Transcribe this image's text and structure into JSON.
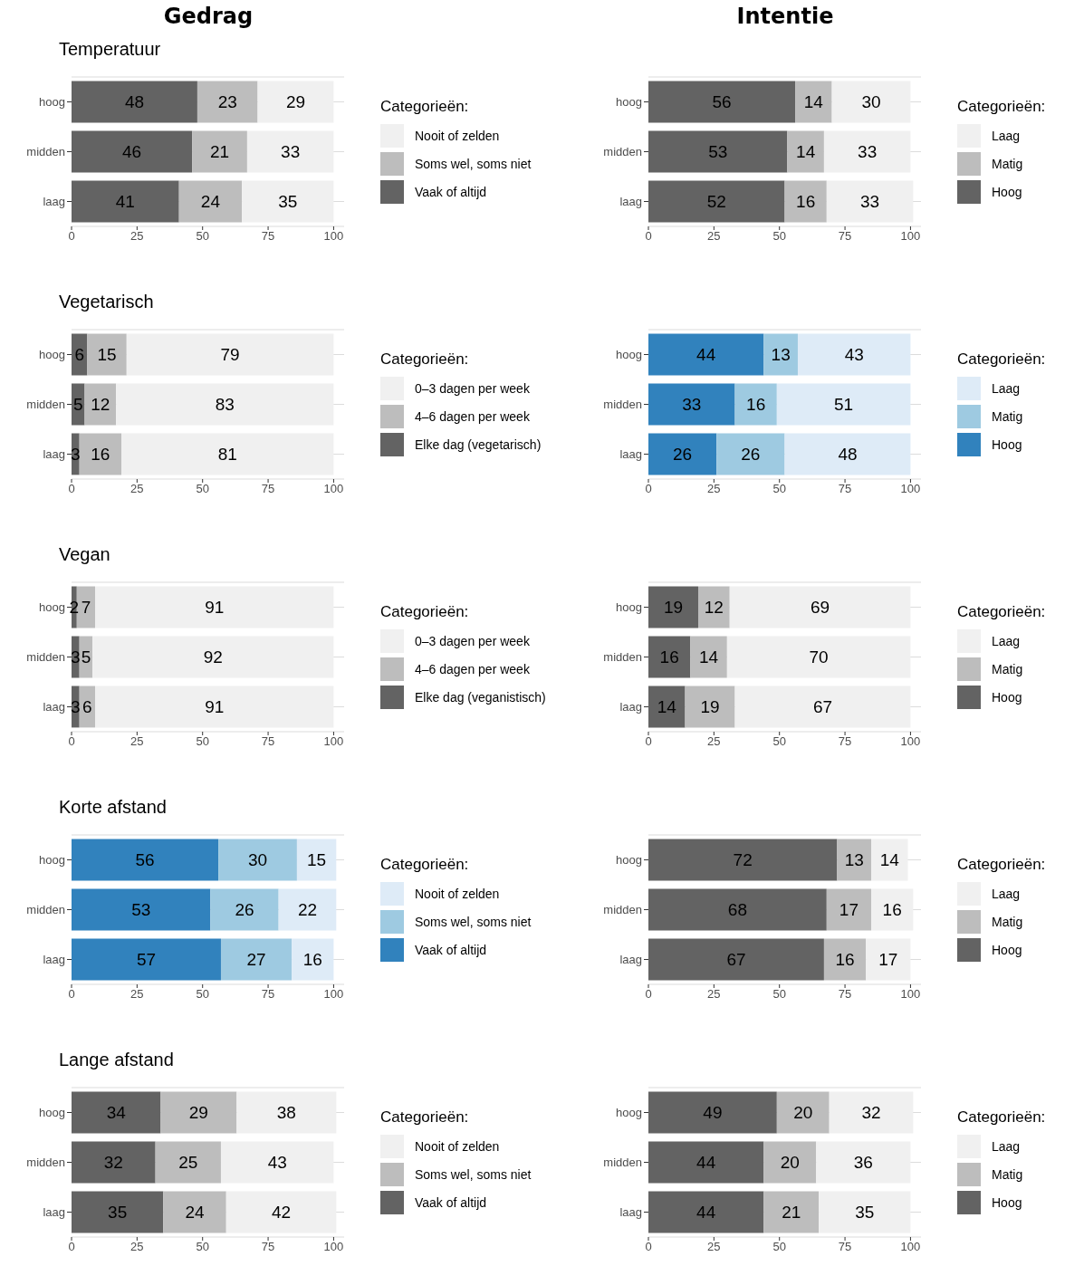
{
  "chart_data": [
    {
      "type": "bar",
      "orientation": "horizontal",
      "stacked": true,
      "title": "Gedrag",
      "subtitle": "Temperatuur",
      "categories": [
        "hoog",
        "midden",
        "laag"
      ],
      "legend_title": "Categorieën:",
      "legend": "right",
      "grid": "y",
      "data_labels": true,
      "xlim": [
        0,
        104
      ],
      "xticks": [
        0,
        25,
        50,
        75,
        100
      ],
      "series": [
        {
          "name": "Vaak of altijd",
          "color": "#636363",
          "values": [
            48,
            46,
            41
          ]
        },
        {
          "name": "Soms wel, soms niet",
          "color": "#bdbdbd",
          "values": [
            23,
            21,
            24
          ]
        },
        {
          "name": "Nooit of zelden",
          "color": "#f0f0f0",
          "values": [
            29,
            33,
            35
          ]
        }
      ]
    },
    {
      "type": "bar",
      "orientation": "horizontal",
      "stacked": true,
      "title": "Intentie",
      "categories": [
        "hoog",
        "midden",
        "laag"
      ],
      "legend_title": "Categorieën:",
      "legend": "right",
      "grid": "y",
      "data_labels": true,
      "xlim": [
        0,
        104
      ],
      "xticks": [
        0,
        25,
        50,
        75,
        100
      ],
      "series": [
        {
          "name": "Hoog",
          "color": "#636363",
          "values": [
            56,
            53,
            52
          ]
        },
        {
          "name": "Matig",
          "color": "#bdbdbd",
          "values": [
            14,
            14,
            16
          ]
        },
        {
          "name": "Laag",
          "color": "#f0f0f0",
          "values": [
            30,
            33,
            33
          ]
        }
      ]
    },
    {
      "type": "bar",
      "orientation": "horizontal",
      "stacked": true,
      "subtitle": "Vegetarisch",
      "categories": [
        "hoog",
        "midden",
        "laag"
      ],
      "legend_title": "Categorieën:",
      "legend": "right",
      "grid": "y",
      "data_labels": true,
      "xlim": [
        0,
        104
      ],
      "xticks": [
        0,
        25,
        50,
        75,
        100
      ],
      "series": [
        {
          "name": "Elke dag (vegetarisch)",
          "color": "#636363",
          "values": [
            6,
            5,
            3
          ]
        },
        {
          "name": "4–6 dagen per week",
          "color": "#bdbdbd",
          "values": [
            15,
            12,
            16
          ]
        },
        {
          "name": "0–3 dagen per week",
          "color": "#f0f0f0",
          "values": [
            79,
            83,
            81
          ]
        }
      ]
    },
    {
      "type": "bar",
      "orientation": "horizontal",
      "stacked": true,
      "categories": [
        "hoog",
        "midden",
        "laag"
      ],
      "legend_title": "Categorieën:",
      "legend": "right",
      "grid": "y",
      "data_labels": true,
      "xlim": [
        0,
        104
      ],
      "xticks": [
        0,
        25,
        50,
        75,
        100
      ],
      "series": [
        {
          "name": "Hoog",
          "color": "#3182bd",
          "values": [
            44,
            33,
            26
          ]
        },
        {
          "name": "Matig",
          "color": "#9ecae1",
          "values": [
            13,
            16,
            26
          ]
        },
        {
          "name": "Laag",
          "color": "#deebf7",
          "values": [
            43,
            51,
            48
          ]
        }
      ]
    },
    {
      "type": "bar",
      "orientation": "horizontal",
      "stacked": true,
      "subtitle": "Vegan",
      "categories": [
        "hoog",
        "midden",
        "laag"
      ],
      "legend_title": "Categorieën:",
      "legend": "right",
      "grid": "y",
      "data_labels": true,
      "xlim": [
        0,
        104
      ],
      "xticks": [
        0,
        25,
        50,
        75,
        100
      ],
      "series": [
        {
          "name": "Elke dag (veganistisch)",
          "color": "#636363",
          "values": [
            2,
            3,
            3
          ]
        },
        {
          "name": "4–6 dagen per week",
          "color": "#bdbdbd",
          "values": [
            7,
            5,
            6
          ]
        },
        {
          "name": "0–3 dagen per week",
          "color": "#f0f0f0",
          "values": [
            91,
            92,
            91
          ]
        }
      ]
    },
    {
      "type": "bar",
      "orientation": "horizontal",
      "stacked": true,
      "categories": [
        "hoog",
        "midden",
        "laag"
      ],
      "legend_title": "Categorieën:",
      "legend": "right",
      "grid": "y",
      "data_labels": true,
      "xlim": [
        0,
        104
      ],
      "xticks": [
        0,
        25,
        50,
        75,
        100
      ],
      "series": [
        {
          "name": "Hoog",
          "color": "#636363",
          "values": [
            19,
            16,
            14
          ]
        },
        {
          "name": "Matig",
          "color": "#bdbdbd",
          "values": [
            12,
            14,
            19
          ]
        },
        {
          "name": "Laag",
          "color": "#f0f0f0",
          "values": [
            69,
            70,
            67
          ]
        }
      ]
    },
    {
      "type": "bar",
      "orientation": "horizontal",
      "stacked": true,
      "subtitle": "Korte afstand",
      "categories": [
        "hoog",
        "midden",
        "laag"
      ],
      "legend_title": "Categorieën:",
      "legend": "right",
      "grid": "y",
      "data_labels": true,
      "xlim": [
        0,
        104
      ],
      "xticks": [
        0,
        25,
        50,
        75,
        100
      ],
      "series": [
        {
          "name": "Vaak of altijd",
          "color": "#3182bd",
          "values": [
            56,
            53,
            57
          ]
        },
        {
          "name": "Soms wel, soms niet",
          "color": "#9ecae1",
          "values": [
            30,
            26,
            27
          ]
        },
        {
          "name": "Nooit of zelden",
          "color": "#deebf7",
          "values": [
            15,
            22,
            16
          ]
        }
      ]
    },
    {
      "type": "bar",
      "orientation": "horizontal",
      "stacked": true,
      "categories": [
        "hoog",
        "midden",
        "laag"
      ],
      "legend_title": "Categorieën:",
      "legend": "right",
      "grid": "y",
      "data_labels": true,
      "xlim": [
        0,
        104
      ],
      "xticks": [
        0,
        25,
        50,
        75,
        100
      ],
      "series": [
        {
          "name": "Hoog",
          "color": "#636363",
          "values": [
            72,
            68,
            67
          ]
        },
        {
          "name": "Matig",
          "color": "#bdbdbd",
          "values": [
            13,
            17,
            16
          ]
        },
        {
          "name": "Laag",
          "color": "#f0f0f0",
          "values": [
            14,
            16,
            17
          ]
        }
      ]
    },
    {
      "type": "bar",
      "orientation": "horizontal",
      "stacked": true,
      "subtitle": "Lange afstand",
      "categories": [
        "hoog",
        "midden",
        "laag"
      ],
      "legend_title": "Categorieën:",
      "legend": "right",
      "grid": "y",
      "data_labels": true,
      "xlim": [
        0,
        104
      ],
      "xticks": [
        0,
        25,
        50,
        75,
        100
      ],
      "series": [
        {
          "name": "Vaak of altijd",
          "color": "#636363",
          "values": [
            34,
            32,
            35
          ]
        },
        {
          "name": "Soms wel, soms niet",
          "color": "#bdbdbd",
          "values": [
            29,
            25,
            24
          ]
        },
        {
          "name": "Nooit of zelden",
          "color": "#f0f0f0",
          "values": [
            38,
            43,
            42
          ]
        }
      ]
    },
    {
      "type": "bar",
      "orientation": "horizontal",
      "stacked": true,
      "categories": [
        "hoog",
        "midden",
        "laag"
      ],
      "legend_title": "Categorieën:",
      "legend": "right",
      "grid": "y",
      "data_labels": true,
      "xlim": [
        0,
        104
      ],
      "xticks": [
        0,
        25,
        50,
        75,
        100
      ],
      "series": [
        {
          "name": "Hoog",
          "color": "#636363",
          "values": [
            49,
            44,
            44
          ]
        },
        {
          "name": "Matig",
          "color": "#bdbdbd",
          "values": [
            20,
            20,
            21
          ]
        },
        {
          "name": "Laag",
          "color": "#f0f0f0",
          "values": [
            32,
            36,
            35
          ]
        }
      ]
    }
  ]
}
